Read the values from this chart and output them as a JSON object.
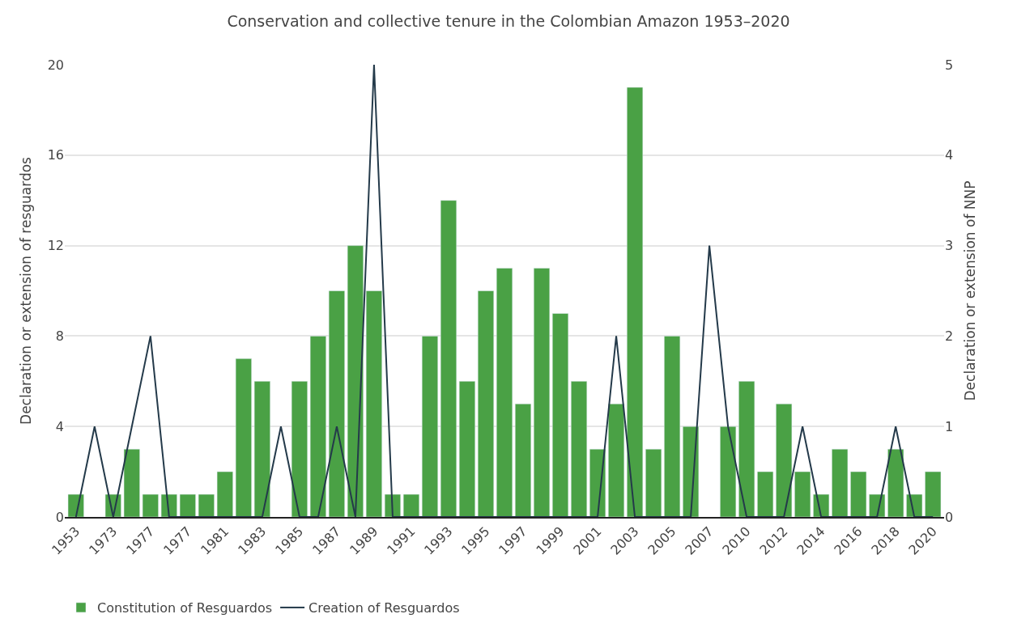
{
  "chart_data": {
    "type": "bar",
    "title": "Conservation and collective tenure in the Colombian Amazon 1953–2020",
    "ylabel": "Declaration or extension of resguardos",
    "y2label": "Declaration or extension of NNP",
    "categories": [
      "1953",
      null,
      "1973",
      null,
      "1977",
      null,
      "1977",
      null,
      "1981",
      null,
      "1983",
      null,
      "1985",
      null,
      "1987",
      null,
      "1989",
      null,
      "1991",
      null,
      "1993",
      null,
      "1995",
      null,
      "1997",
      null,
      "1999",
      null,
      "2001",
      null,
      "2003",
      null,
      "2005",
      null,
      "2007",
      null,
      "2010",
      null,
      "2012",
      null,
      "2014",
      null,
      "2016",
      null,
      "2018",
      null,
      "2020"
    ],
    "series": [
      {
        "name": "Constitution of Resguardos",
        "color": "#4aa145",
        "values": [
          1,
          null,
          1,
          3,
          1,
          1,
          1,
          1,
          2,
          7,
          6,
          null,
          6,
          8,
          10,
          12,
          10,
          1,
          1,
          8,
          14,
          6,
          10,
          11,
          5,
          11,
          9,
          6,
          3,
          5,
          19,
          3,
          8,
          4,
          null,
          4,
          6,
          2,
          5,
          2,
          1,
          3,
          2,
          1,
          3,
          1,
          2
        ]
      },
      {
        "name": "Creation of Resguardos",
        "type": "line",
        "axis": "y2",
        "color": "#243a4a",
        "values": [
          0,
          1,
          0,
          1,
          2,
          0,
          0,
          0,
          0,
          0,
          0,
          1,
          0,
          0,
          1,
          0,
          5,
          0,
          0,
          0,
          0,
          0,
          0,
          0,
          0,
          0,
          0,
          0,
          0,
          2,
          0,
          0,
          0,
          0,
          3,
          1,
          0,
          0,
          0,
          1,
          0,
          0,
          0,
          0,
          1,
          0,
          0
        ]
      }
    ],
    "ylim": [
      0,
      20
    ],
    "yticks": [
      0,
      4,
      8,
      12,
      16,
      20
    ],
    "y2lim": [
      0,
      5
    ],
    "y2ticks": [
      0,
      1,
      2,
      3,
      4,
      5
    ],
    "grid": "y",
    "legend": "bottom"
  }
}
